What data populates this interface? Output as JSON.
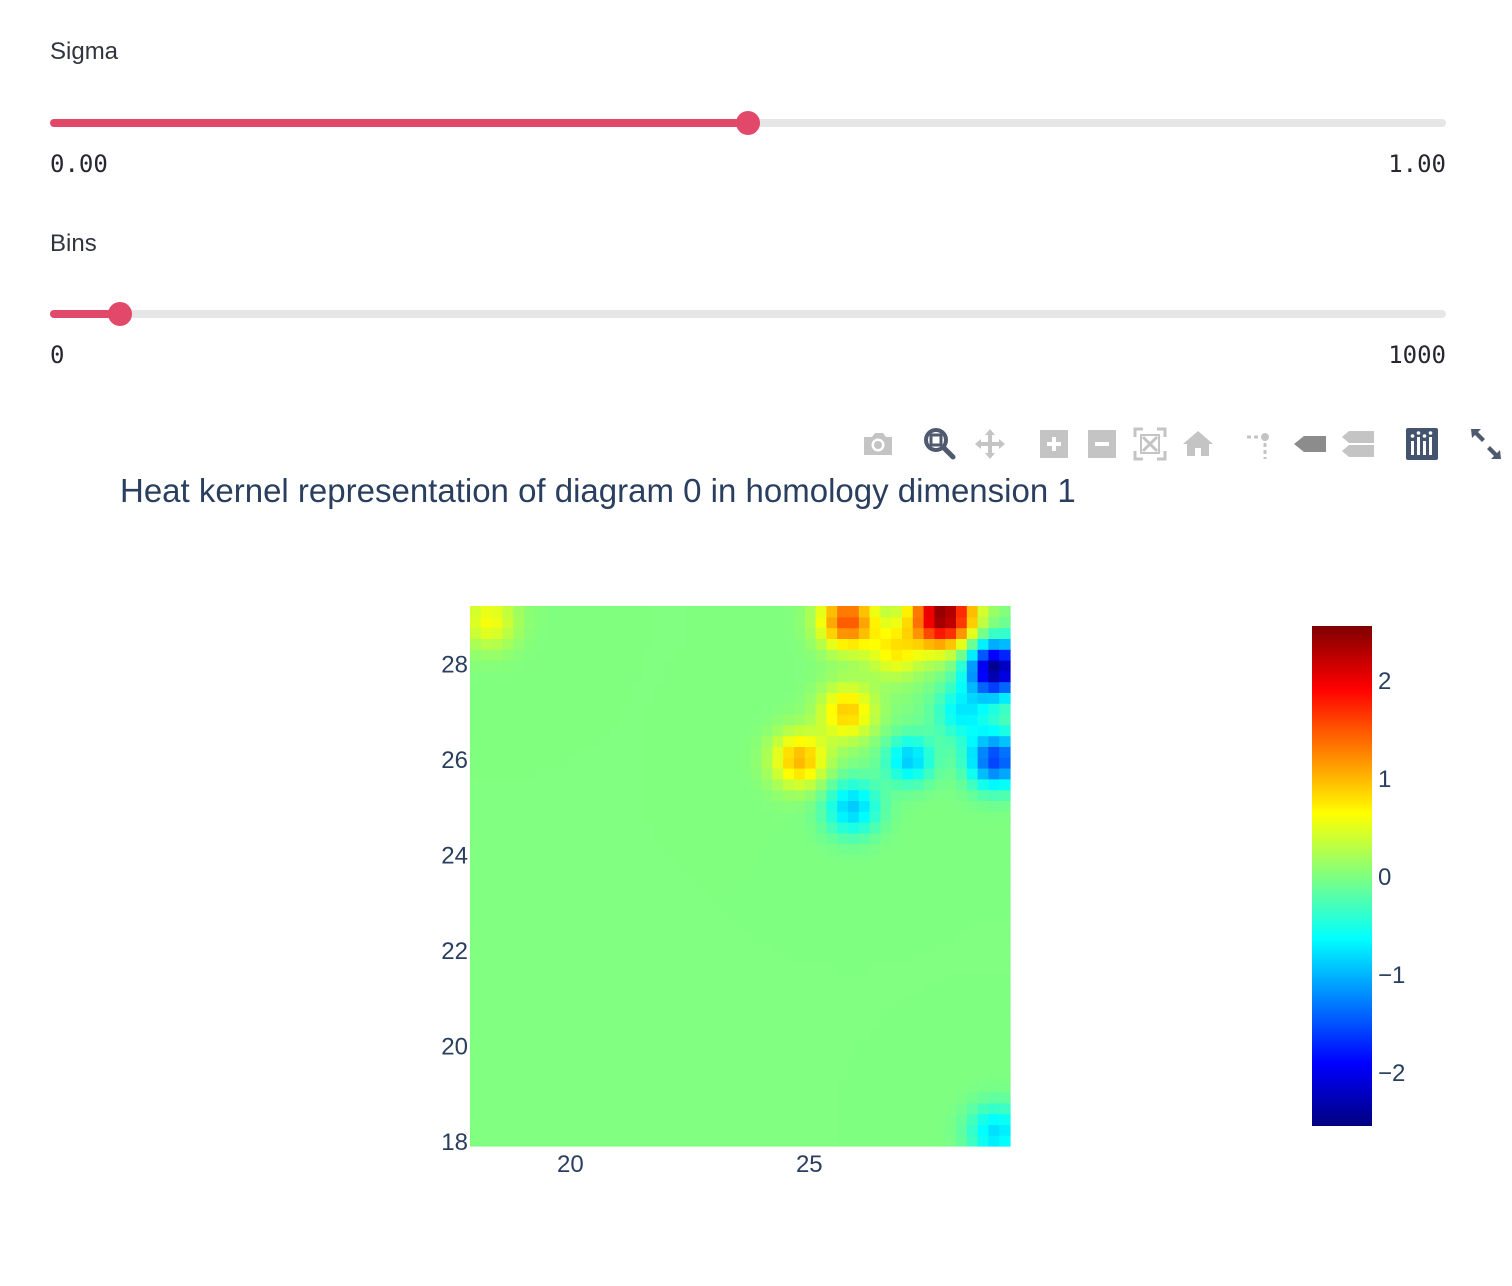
{
  "sliders": [
    {
      "label": "Sigma",
      "min_label": "0.00",
      "max_label": "1.00",
      "min": 0,
      "max": 1,
      "value": 0.5
    },
    {
      "label": "Bins",
      "min_label": "0",
      "max_label": "1000",
      "min": 0,
      "max": 1000,
      "value": 50
    }
  ],
  "colors": {
    "accent": "#e2486a",
    "track": "#e6e6e6",
    "text": "#2a3f5f",
    "modebar_icon": "#c4c4c4",
    "modebar_active": "#44546f"
  },
  "modebar": {
    "icons": [
      "camera-icon",
      "zoom-icon",
      "pan-icon",
      "zoom-in-icon",
      "zoom-out-icon",
      "autoscale-icon",
      "reset-axes-icon",
      "spike-lines-icon",
      "hover-closest-icon",
      "hover-compare-icon",
      "plotly-logo-icon",
      "fullscreen-icon"
    ]
  },
  "chart_data": {
    "type": "heatmap",
    "title": "Heat kernel representation of diagram 0 in homology dimension 1",
    "xlabel": "",
    "ylabel": "",
    "xlim": [
      17.9,
      29.2
    ],
    "ylim": [
      17.9,
      29.2
    ],
    "x_ticks": [
      "20",
      "25"
    ],
    "x_tick_values": [
      20,
      25
    ],
    "y_ticks": [
      "18",
      "20",
      "22",
      "24",
      "26",
      "28"
    ],
    "y_tick_values": [
      18,
      20,
      22,
      24,
      26,
      28
    ],
    "grid_size": 50,
    "colorscale": "Jet",
    "zmin": -2.55,
    "zmax": 2.55,
    "colorbar_ticks": [
      "2",
      "1",
      "0",
      "−1",
      "−2"
    ],
    "colorbar_tick_values": [
      2,
      1,
      0,
      -1,
      -2
    ],
    "blobs": [
      {
        "x": 18.3,
        "y": 28.9,
        "amp": 0.6,
        "s": 0.4
      },
      {
        "x": 25.8,
        "y": 28.9,
        "amp": 1.5,
        "s": 0.4
      },
      {
        "x": 27.8,
        "y": 29.0,
        "amp": 2.5,
        "s": 0.45
      },
      {
        "x": 26.8,
        "y": 28.3,
        "amp": 0.7,
        "s": 0.4
      },
      {
        "x": 25.8,
        "y": 27.0,
        "amp": 0.9,
        "s": 0.4
      },
      {
        "x": 24.8,
        "y": 26.0,
        "amp": 1.0,
        "s": 0.4
      },
      {
        "x": 28.9,
        "y": 27.9,
        "amp": -2.5,
        "s": 0.4
      },
      {
        "x": 28.2,
        "y": 27.0,
        "amp": -0.7,
        "s": 0.4
      },
      {
        "x": 27.1,
        "y": 26.0,
        "amp": -0.9,
        "s": 0.35
      },
      {
        "x": 28.9,
        "y": 26.0,
        "amp": -1.6,
        "s": 0.4
      },
      {
        "x": 25.9,
        "y": 25.0,
        "amp": -0.9,
        "s": 0.4
      },
      {
        "x": 28.9,
        "y": 18.2,
        "amp": -0.8,
        "s": 0.4
      }
    ]
  }
}
